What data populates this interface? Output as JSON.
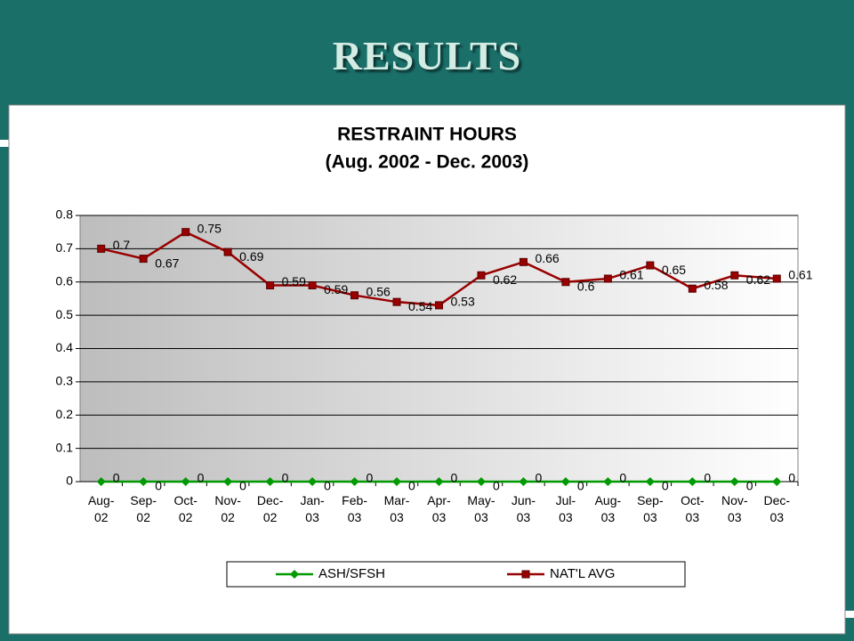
{
  "slide_title": "RESULTS",
  "chart_data": {
    "type": "line",
    "title": "RESTRAINT HOURS",
    "subtitle": "(Aug. 2002 - Dec. 2003)",
    "categories": [
      "Aug-02",
      "Sep-02",
      "Oct-02",
      "Nov-02",
      "Dec-02",
      "Jan-03",
      "Feb-03",
      "Mar-03",
      "Apr-03",
      "May-03",
      "Jun-03",
      "Jul-03",
      "Aug-03",
      "Sep-03",
      "Oct-03",
      "Nov-03",
      "Dec-03"
    ],
    "series": [
      {
        "name": "ASH/SFSH",
        "color": "#009a00",
        "marker": "diamond",
        "values": [
          0,
          0,
          0,
          0,
          0,
          0,
          0,
          0,
          0,
          0,
          0,
          0,
          0,
          0,
          0,
          0,
          0
        ]
      },
      {
        "name": "NAT'L AVG",
        "color": "#990000",
        "marker": "square",
        "values": [
          0.7,
          0.67,
          0.75,
          0.69,
          0.59,
          0.59,
          0.56,
          0.54,
          0.53,
          0.62,
          0.66,
          0.6,
          0.61,
          0.65,
          0.58,
          0.62,
          0.61
        ]
      }
    ],
    "ylim": [
      0,
      0.8
    ],
    "yticks": [
      0,
      0.1,
      0.2,
      0.3,
      0.4,
      0.5,
      0.6,
      0.7,
      0.8
    ],
    "grid": true,
    "legend": "bottom"
  }
}
